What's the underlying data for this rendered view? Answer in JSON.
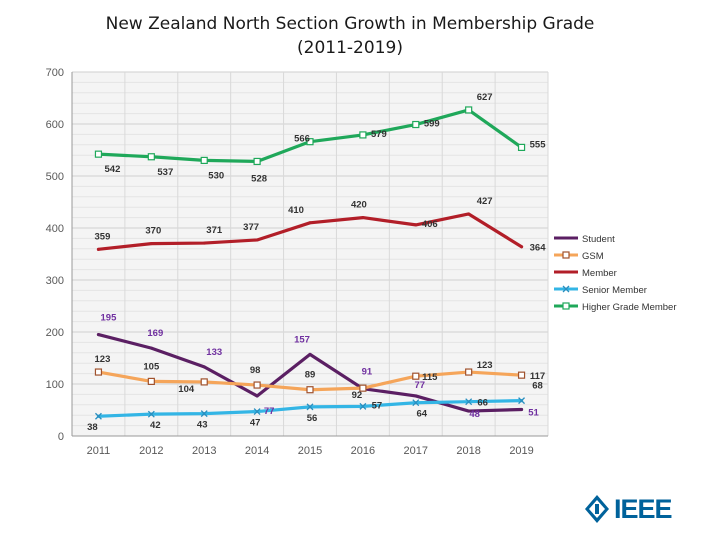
{
  "chart_data": {
    "type": "line",
    "title_line1": "New Zealand North Section Growth in Membership Grade",
    "title_line2": "(2011-2019)",
    "categories": [
      "2011",
      "2012",
      "2013",
      "2014",
      "2015",
      "2016",
      "2017",
      "2018",
      "2019"
    ],
    "ylim": [
      0,
      700
    ],
    "yticks": [
      0,
      100,
      200,
      300,
      400,
      500,
      600,
      700
    ],
    "grid": true,
    "legend_position": "right",
    "series": [
      {
        "name": "Student",
        "color": "#5b1f63",
        "marker": "none",
        "label_color": "#7030a0",
        "values": [
          195,
          169,
          133,
          77,
          157,
          91,
          77,
          48,
          51
        ],
        "labels": [
          "195",
          "169",
          "133",
          "77",
          "157",
          "91",
          "77",
          "48",
          "51"
        ]
      },
      {
        "name": "GSM",
        "color": "#f5a55a",
        "marker": "square",
        "label_color": "#333333",
        "values": [
          123,
          105,
          104,
          98,
          89,
          92,
          115,
          123,
          117
        ],
        "labels": [
          "123",
          "105",
          "104",
          "98",
          "89",
          "92",
          "115",
          "123",
          "117"
        ]
      },
      {
        "name": "Member",
        "color": "#b21e28",
        "marker": "none",
        "label_color": "#333333",
        "values": [
          359,
          370,
          371,
          377,
          410,
          420,
          406,
          427,
          364
        ],
        "labels": [
          "359",
          "370",
          "371",
          "377",
          "410",
          "420",
          "406",
          "427",
          "364"
        ]
      },
      {
        "name": "Senior Member",
        "color": "#33b5e5",
        "marker": "x",
        "label_color": "#333333",
        "values": [
          38,
          42,
          43,
          47,
          56,
          57,
          64,
          66,
          68
        ],
        "labels": [
          "38",
          "42",
          "43",
          "47",
          "56",
          "57",
          "64",
          "66",
          "68"
        ]
      },
      {
        "name": "Higher Grade Member",
        "color": "#1fa85a",
        "marker": "square",
        "label_color": "#333333",
        "values": [
          542,
          537,
          530,
          528,
          566,
          579,
          599,
          627,
          555
        ],
        "labels": [
          "542",
          "537",
          "530",
          "528",
          "566",
          "579",
          "599",
          "627",
          "555"
        ]
      }
    ]
  },
  "logo": {
    "text": "IEEE",
    "color": "#00629b"
  }
}
